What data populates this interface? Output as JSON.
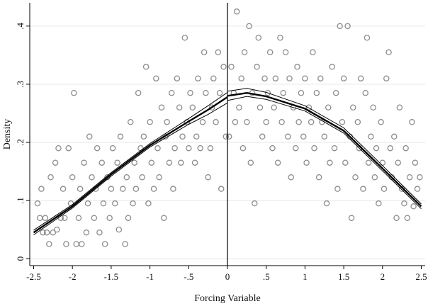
{
  "chart_data": {
    "type": "scatter",
    "title": "",
    "xlabel": "Forcing Variable",
    "ylabel": "Density",
    "xlim": [
      -2.55,
      2.55
    ],
    "ylim": [
      -0.012,
      0.44
    ],
    "x_ticks": [
      -2.5,
      -2,
      -1.5,
      -1,
      -0.5,
      0,
      0.5,
      1,
      1.5,
      2,
      2.5
    ],
    "x_tick_labels": [
      "-2.5",
      "-2",
      "-1.5",
      "-1",
      "-.5",
      "0",
      ".5",
      "1",
      "1.5",
      "2",
      "2.5"
    ],
    "y_ticks": [
      0,
      0.1,
      0.2,
      0.3,
      0.4
    ],
    "y_tick_labels": [
      "0",
      ".1",
      ".2",
      ".3",
      ".4"
    ],
    "grid": "horizontal",
    "cutoff": 0,
    "scatter_color": "#8c8c8c",
    "fit_color": "#000000",
    "series": [
      {
        "role": "bin-density",
        "points": [
          [
            -2.45,
            0.095
          ],
          [
            -2.42,
            0.07
          ],
          [
            -2.4,
            0.12
          ],
          [
            -2.38,
            0.045
          ],
          [
            -2.35,
            0.07
          ],
          [
            -2.33,
            0.045
          ],
          [
            -2.3,
            0.025
          ],
          [
            -2.28,
            0.14
          ],
          [
            -2.25,
            0.045
          ],
          [
            -2.22,
            0.165
          ],
          [
            -2.2,
            0.05
          ],
          [
            -2.18,
            0.19
          ],
          [
            -2.15,
            0.07
          ],
          [
            -2.12,
            0.12
          ],
          [
            -2.1,
            0.07
          ],
          [
            -2.08,
            0.025
          ],
          [
            -2.05,
            0.19
          ],
          [
            -2.02,
            0.095
          ],
          [
            -2.0,
            0.14
          ],
          [
            -1.98,
            0.285
          ],
          [
            -1.95,
            0.025
          ],
          [
            -1.92,
            0.07
          ],
          [
            -1.9,
            0.12
          ],
          [
            -1.88,
            0.025
          ],
          [
            -1.85,
            0.165
          ],
          [
            -1.82,
            0.045
          ],
          [
            -1.8,
            0.095
          ],
          [
            -1.78,
            0.21
          ],
          [
            -1.75,
            0.14
          ],
          [
            -1.72,
            0.07
          ],
          [
            -1.7,
            0.12
          ],
          [
            -1.68,
            0.19
          ],
          [
            -1.65,
            0.045
          ],
          [
            -1.62,
            0.165
          ],
          [
            -1.6,
            0.095
          ],
          [
            -1.58,
            0.025
          ],
          [
            -1.55,
            0.14
          ],
          [
            -1.52,
            0.07
          ],
          [
            -1.5,
            0.12
          ],
          [
            -1.48,
            0.19
          ],
          [
            -1.45,
            0.095
          ],
          [
            -1.42,
            0.165
          ],
          [
            -1.4,
            0.05
          ],
          [
            -1.38,
            0.21
          ],
          [
            -1.35,
            0.12
          ],
          [
            -1.32,
            0.025
          ],
          [
            -1.3,
            0.14
          ],
          [
            -1.28,
            0.07
          ],
          [
            -1.25,
            0.235
          ],
          [
            -1.22,
            0.095
          ],
          [
            -1.2,
            0.165
          ],
          [
            -1.18,
            0.12
          ],
          [
            -1.15,
            0.285
          ],
          [
            -1.12,
            0.19
          ],
          [
            -1.1,
            0.14
          ],
          [
            -1.08,
            0.21
          ],
          [
            -1.05,
            0.33
          ],
          [
            -1.02,
            0.095
          ],
          [
            -1.0,
            0.235
          ],
          [
            -0.98,
            0.165
          ],
          [
            -0.95,
            0.12
          ],
          [
            -0.92,
            0.31
          ],
          [
            -0.9,
            0.19
          ],
          [
            -0.88,
            0.14
          ],
          [
            -0.85,
            0.26
          ],
          [
            -0.82,
            0.07
          ],
          [
            -0.8,
            0.21
          ],
          [
            -0.78,
            0.235
          ],
          [
            -0.75,
            0.165
          ],
          [
            -0.72,
            0.285
          ],
          [
            -0.7,
            0.12
          ],
          [
            -0.68,
            0.19
          ],
          [
            -0.65,
            0.31
          ],
          [
            -0.62,
            0.26
          ],
          [
            -0.6,
            0.165
          ],
          [
            -0.58,
            0.21
          ],
          [
            -0.55,
            0.38
          ],
          [
            -0.52,
            0.235
          ],
          [
            -0.5,
            0.19
          ],
          [
            -0.48,
            0.285
          ],
          [
            -0.45,
            0.26
          ],
          [
            -0.42,
            0.165
          ],
          [
            -0.4,
            0.21
          ],
          [
            -0.38,
            0.31
          ],
          [
            -0.35,
            0.19
          ],
          [
            -0.32,
            0.235
          ],
          [
            -0.3,
            0.355
          ],
          [
            -0.28,
            0.285
          ],
          [
            -0.25,
            0.14
          ],
          [
            -0.22,
            0.19
          ],
          [
            -0.2,
            0.26
          ],
          [
            -0.18,
            0.31
          ],
          [
            -0.15,
            0.235
          ],
          [
            -0.12,
            0.355
          ],
          [
            -0.1,
            0.285
          ],
          [
            -0.08,
            0.12
          ],
          [
            -0.05,
            0.33
          ],
          [
            -0.02,
            0.21
          ],
          [
            0.02,
            0.21
          ],
          [
            0.05,
            0.33
          ],
          [
            0.08,
            0.285
          ],
          [
            0.1,
            0.235
          ],
          [
            0.12,
            0.425
          ],
          [
            0.15,
            0.26
          ],
          [
            0.18,
            0.31
          ],
          [
            0.2,
            0.19
          ],
          [
            0.22,
            0.355
          ],
          [
            0.25,
            0.235
          ],
          [
            0.28,
            0.4
          ],
          [
            0.3,
            0.165
          ],
          [
            0.32,
            0.285
          ],
          [
            0.35,
            0.095
          ],
          [
            0.38,
            0.33
          ],
          [
            0.4,
            0.38
          ],
          [
            0.42,
            0.26
          ],
          [
            0.45,
            0.21
          ],
          [
            0.48,
            0.31
          ],
          [
            0.5,
            0.235
          ],
          [
            0.52,
            0.285
          ],
          [
            0.55,
            0.355
          ],
          [
            0.58,
            0.19
          ],
          [
            0.6,
            0.26
          ],
          [
            0.62,
            0.31
          ],
          [
            0.65,
            0.165
          ],
          [
            0.68,
            0.38
          ],
          [
            0.7,
            0.235
          ],
          [
            0.72,
            0.285
          ],
          [
            0.75,
            0.355
          ],
          [
            0.78,
            0.21
          ],
          [
            0.8,
            0.31
          ],
          [
            0.82,
            0.14
          ],
          [
            0.85,
            0.26
          ],
          [
            0.88,
            0.19
          ],
          [
            0.9,
            0.33
          ],
          [
            0.92,
            0.235
          ],
          [
            0.95,
            0.285
          ],
          [
            0.98,
            0.21
          ],
          [
            1.0,
            0.31
          ],
          [
            1.02,
            0.165
          ],
          [
            1.05,
            0.26
          ],
          [
            1.08,
            0.235
          ],
          [
            1.1,
            0.355
          ],
          [
            1.12,
            0.19
          ],
          [
            1.15,
            0.285
          ],
          [
            1.18,
            0.14
          ],
          [
            1.2,
            0.31
          ],
          [
            1.22,
            0.235
          ],
          [
            1.25,
            0.21
          ],
          [
            1.28,
            0.095
          ],
          [
            1.3,
            0.26
          ],
          [
            1.32,
            0.165
          ],
          [
            1.35,
            0.33
          ],
          [
            1.38,
            0.19
          ],
          [
            1.4,
            0.285
          ],
          [
            1.42,
            0.12
          ],
          [
            1.45,
            0.4
          ],
          [
            1.48,
            0.235
          ],
          [
            1.5,
            0.31
          ],
          [
            1.52,
            0.165
          ],
          [
            1.55,
            0.4
          ],
          [
            1.58,
            0.21
          ],
          [
            1.6,
            0.07
          ],
          [
            1.62,
            0.26
          ],
          [
            1.65,
            0.14
          ],
          [
            1.68,
            0.235
          ],
          [
            1.7,
            0.19
          ],
          [
            1.72,
            0.31
          ],
          [
            1.75,
            0.12
          ],
          [
            1.78,
            0.285
          ],
          [
            1.8,
            0.38
          ],
          [
            1.82,
            0.165
          ],
          [
            1.85,
            0.21
          ],
          [
            1.88,
            0.26
          ],
          [
            1.9,
            0.14
          ],
          [
            1.92,
            0.19
          ],
          [
            1.95,
            0.095
          ],
          [
            1.98,
            0.235
          ],
          [
            2.0,
            0.165
          ],
          [
            2.02,
            0.12
          ],
          [
            2.05,
            0.31
          ],
          [
            2.08,
            0.355
          ],
          [
            2.1,
            0.19
          ],
          [
            2.12,
            0.14
          ],
          [
            2.15,
            0.21
          ],
          [
            2.18,
            0.07
          ],
          [
            2.2,
            0.165
          ],
          [
            2.22,
            0.26
          ],
          [
            2.25,
            0.12
          ],
          [
            2.28,
            0.095
          ],
          [
            2.3,
            0.19
          ],
          [
            2.32,
            0.07
          ],
          [
            2.35,
            0.14
          ],
          [
            2.38,
            0.235
          ],
          [
            2.4,
            0.09
          ],
          [
            2.42,
            0.165
          ],
          [
            2.45,
            0.12
          ],
          [
            2.48,
            0.14
          ]
        ]
      },
      {
        "role": "fit-left",
        "x": [
          -2.5,
          -2.0,
          -1.5,
          -1.0,
          -0.5,
          -0.25,
          0
        ],
        "fit": [
          0.045,
          0.09,
          0.145,
          0.195,
          0.236,
          0.256,
          0.278
        ],
        "ci_low": [
          0.041,
          0.087,
          0.142,
          0.192,
          0.231,
          0.248,
          0.268
        ],
        "ci_high": [
          0.049,
          0.093,
          0.148,
          0.198,
          0.241,
          0.263,
          0.286
        ]
      },
      {
        "role": "fit-right",
        "x": [
          0,
          0.25,
          0.5,
          1.0,
          1.5,
          2.0,
          2.5
        ],
        "fit": [
          0.28,
          0.285,
          0.279,
          0.258,
          0.22,
          0.155,
          0.09
        ],
        "ci_low": [
          0.272,
          0.279,
          0.274,
          0.254,
          0.216,
          0.151,
          0.086
        ],
        "ci_high": [
          0.288,
          0.293,
          0.286,
          0.263,
          0.225,
          0.16,
          0.094
        ]
      }
    ]
  }
}
